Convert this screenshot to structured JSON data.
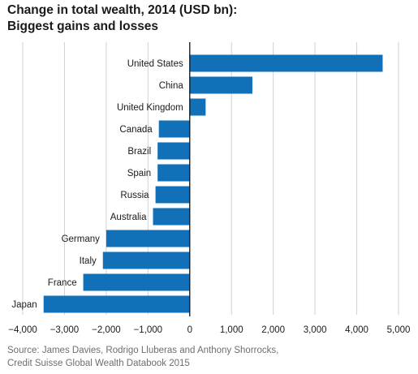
{
  "header": {
    "title_line1": "Change in total wealth, 2014 (USD bn):",
    "title_line2": "Biggest gains and losses"
  },
  "footer": {
    "source_line1": "Source: James Davies, Rodrigo Lluberas and Anthony Shorrocks,",
    "source_line2": "Credit Suisse Global Wealth Databook 2015"
  },
  "chart_data": {
    "type": "bar",
    "orientation": "horizontal",
    "title": "Change in total wealth, 2014 (USD bn): Biggest gains and losses",
    "categories": [
      "United States",
      "China",
      "United Kingdom",
      "Canada",
      "Brazil",
      "Spain",
      "Russia",
      "Australia",
      "Germany",
      "Italy",
      "France",
      "Japan"
    ],
    "values": [
      4620,
      1500,
      380,
      -740,
      -770,
      -770,
      -820,
      -880,
      -2000,
      -2080,
      -2550,
      -3500
    ],
    "xlim": [
      -4000,
      5000
    ],
    "xticks": [
      -4000,
      -3000,
      -2000,
      -1000,
      0,
      1000,
      2000,
      3000,
      4000,
      5000
    ],
    "xtick_labels": [
      "−4,000",
      "−3,000",
      "−2,000",
      "−1,000",
      "0",
      "1,000",
      "2,000",
      "3,000",
      "4,000",
      "5,000"
    ],
    "grid": "vertical",
    "bar_color": "#1170b8",
    "grid_color": "#d2d2d2",
    "zero_line_color": "#111111"
  }
}
